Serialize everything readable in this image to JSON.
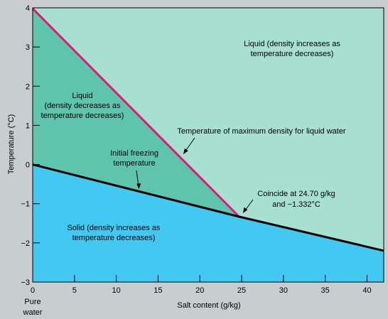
{
  "chart_data": {
    "type": "area",
    "xlabel": "Salt content (g/kg)",
    "ylabel": "Temperature (°C)",
    "xlim": [
      0,
      42
    ],
    "ylim": [
      -3,
      4
    ],
    "xticks": [
      0,
      5,
      10,
      15,
      20,
      25,
      30,
      35,
      40
    ],
    "yticks": [
      -3,
      -2,
      -1,
      0,
      1,
      2,
      3,
      4
    ],
    "x0_sublabel": [
      "Pure",
      "water"
    ],
    "grid": false,
    "background_color": "#c8cdd0",
    "series": [
      {
        "name": "Temperature of maximum density for liquid water",
        "color": "#e0187a",
        "x": [
          0,
          24.7
        ],
        "y": [
          3.98,
          -1.332
        ]
      },
      {
        "name": "Initial freezing temperature",
        "color": "#000000",
        "x": [
          0,
          24.7,
          42
        ],
        "y": [
          0,
          -1.332,
          -2.2
        ]
      }
    ],
    "regions": [
      {
        "name": "liquid-upper",
        "color": "#a7dfd1"
      },
      {
        "name": "liquid-lower",
        "color": "#5ec4ad"
      },
      {
        "name": "solid",
        "color": "#43c8f2"
      }
    ],
    "annotations": {
      "liquid_upper": [
        "Liquid (density increases as",
        "temperature decreases)"
      ],
      "liquid_lower": [
        "Liquid",
        "(density decreases as",
        "temperature decreases)"
      ],
      "solid": [
        "Solid (density increases as",
        "temperature decreases)"
      ],
      "max_density": [
        "Temperature of maximum density for liquid water"
      ],
      "freezing": [
        "Initial freezing",
        "temperature"
      ],
      "coincide": [
        "Coincide at 24.70 g/kg",
        "and −1.332°C"
      ]
    }
  }
}
